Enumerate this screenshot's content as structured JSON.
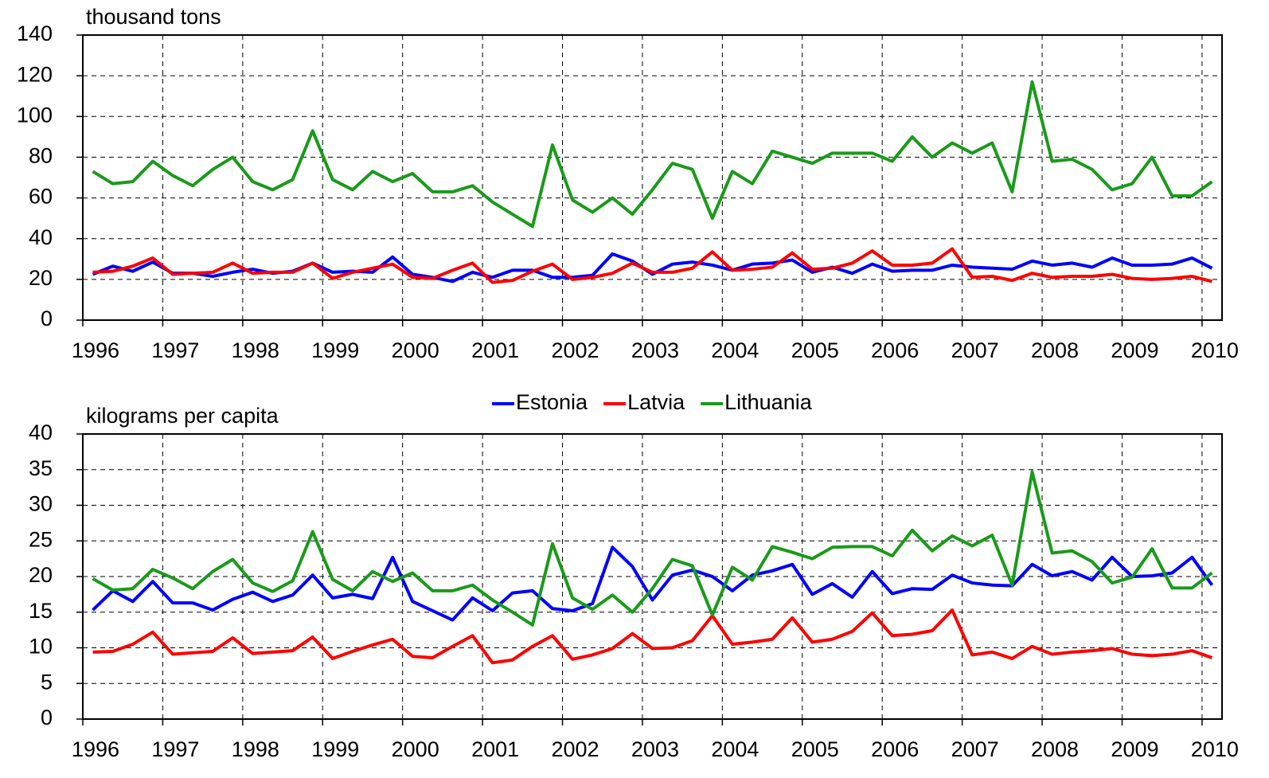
{
  "chart_data": [
    {
      "type": "line",
      "title": "thousand tons",
      "x": [
        1996.125,
        1996.375,
        1996.625,
        1996.875,
        1997.125,
        1997.375,
        1997.625,
        1997.875,
        1998.125,
        1998.375,
        1998.625,
        1998.875,
        1999.125,
        1999.375,
        1999.625,
        1999.875,
        2000.125,
        2000.375,
        2000.625,
        2000.875,
        2001.125,
        2001.375,
        2001.625,
        2001.875,
        2002.125,
        2002.375,
        2002.625,
        2002.875,
        2003.125,
        2003.375,
        2003.625,
        2003.875,
        2004.125,
        2004.375,
        2004.625,
        2004.875,
        2005.125,
        2005.375,
        2005.625,
        2005.875,
        2006.125,
        2006.375,
        2006.625,
        2006.875,
        2007.125,
        2007.375,
        2007.625,
        2007.875,
        2008.125,
        2008.375,
        2008.625,
        2008.875,
        2009.125,
        2009.375,
        2009.625,
        2009.875,
        2010.125
      ],
      "series": [
        {
          "color": "#0000ff",
          "values": [
            22.5,
            26.5,
            24,
            28.5,
            23,
            23,
            21.5,
            23.5,
            25,
            23,
            24,
            28,
            23.5,
            24,
            23.5,
            31,
            22.5,
            21,
            19,
            23.5,
            21,
            24.5,
            24.5,
            21,
            21,
            22,
            32.5,
            29,
            22.5,
            27.5,
            28.5,
            27,
            24.5,
            27.5,
            28,
            29.5,
            23.5,
            26,
            23,
            27.5,
            24,
            24.5,
            24.5,
            27,
            26,
            25.5,
            25,
            29,
            27,
            28,
            26,
            30.5,
            27,
            27,
            27.5,
            30.5,
            25.5
          ]
        },
        {
          "color": "#ff0000",
          "values": [
            23.5,
            24,
            26.5,
            30.5,
            22.5,
            23,
            23.5,
            28,
            23,
            23.5,
            23.5,
            28,
            20.5,
            23.5,
            25.5,
            27.5,
            21,
            20.5,
            24.5,
            28,
            18.5,
            19.5,
            24,
            27.5,
            20,
            21,
            23,
            28,
            23.5,
            23.5,
            25.5,
            33.5,
            24.5,
            25,
            26,
            33,
            25,
            25.5,
            28,
            34,
            27,
            27,
            28,
            35,
            21,
            21.5,
            19.5,
            23,
            21,
            21.5,
            21.5,
            22.5,
            20.5,
            20,
            20.5,
            21.5,
            19
          ]
        },
        {
          "color": "#1a9a1a",
          "values": [
            73,
            67,
            68,
            78,
            71,
            66,
            74,
            80,
            68,
            64,
            69,
            93,
            69,
            64,
            73,
            68,
            72,
            63,
            63,
            66,
            58,
            52,
            46,
            86,
            59,
            53,
            60,
            52,
            64,
            77,
            74,
            50,
            73,
            67,
            83,
            80,
            77,
            82,
            82,
            82,
            78,
            90,
            80,
            87,
            82,
            87,
            63,
            117,
            78,
            79,
            74,
            64,
            67,
            80,
            61,
            61,
            68
          ]
        }
      ],
      "xlim": [
        1996,
        2010.25
      ],
      "xticks": [
        1996,
        1997,
        1998,
        1999,
        2000,
        2001,
        2002,
        2003,
        2004,
        2005,
        2006,
        2007,
        2008,
        2009,
        2010
      ],
      "ylim": [
        0,
        140
      ],
      "yticks": [
        0,
        20,
        40,
        60,
        80,
        100,
        120,
        140
      ],
      "grid": true
    },
    {
      "type": "line",
      "title": "kilograms per capita",
      "x": [
        1996.125,
        1996.375,
        1996.625,
        1996.875,
        1997.125,
        1997.375,
        1997.625,
        1997.875,
        1998.125,
        1998.375,
        1998.625,
        1998.875,
        1999.125,
        1999.375,
        1999.625,
        1999.875,
        2000.125,
        2000.375,
        2000.625,
        2000.875,
        2001.125,
        2001.375,
        2001.625,
        2001.875,
        2002.125,
        2002.375,
        2002.625,
        2002.875,
        2003.125,
        2003.375,
        2003.625,
        2003.875,
        2004.125,
        2004.375,
        2004.625,
        2004.875,
        2005.125,
        2005.375,
        2005.625,
        2005.875,
        2006.125,
        2006.375,
        2006.625,
        2006.875,
        2007.125,
        2007.375,
        2007.625,
        2007.875,
        2008.125,
        2008.375,
        2008.625,
        2008.875,
        2009.125,
        2009.375,
        2009.625,
        2009.875,
        2010.125
      ],
      "series": [
        {
          "name": "Estonia",
          "color": "#0000ff",
          "values": [
            15.3,
            18,
            16.5,
            19.3,
            16.3,
            16.3,
            15.3,
            16.8,
            17.8,
            16.5,
            17.4,
            20.2,
            17,
            17.5,
            16.9,
            22.7,
            16.5,
            15.2,
            13.9,
            17,
            15.2,
            17.7,
            18,
            15.5,
            15.2,
            16.2,
            24.1,
            21.4,
            16.7,
            20.2,
            20.9,
            20,
            18,
            20.2,
            20.8,
            21.7,
            17.5,
            19,
            17.1,
            20.7,
            17.6,
            18.3,
            18.2,
            20.2,
            19.1,
            18.8,
            18.7,
            21.7,
            20.1,
            20.7,
            19.5,
            22.7,
            20,
            20.1,
            20.5,
            22.7,
            18.8
          ]
        },
        {
          "name": "Latvia",
          "color": "#ff0000",
          "values": [
            9.4,
            9.5,
            10.5,
            12.2,
            9.1,
            9.3,
            9.5,
            11.4,
            9.2,
            9.4,
            9.6,
            11.5,
            8.5,
            9.5,
            10.4,
            11.2,
            8.8,
            8.6,
            10.2,
            11.7,
            7.9,
            8.3,
            10.2,
            11.7,
            8.4,
            9,
            9.9,
            12,
            9.9,
            10,
            11,
            14.5,
            10.5,
            10.8,
            11.2,
            14.2,
            10.8,
            11.2,
            12.3,
            14.9,
            11.7,
            11.9,
            12.4,
            15.3,
            9,
            9.4,
            8.5,
            10.2,
            9.1,
            9.4,
            9.6,
            9.9,
            9.1,
            8.9,
            9.1,
            9.6,
            8.6
          ]
        },
        {
          "name": "Lithuania",
          "color": "#1a9a1a",
          "values": [
            19.7,
            18.1,
            18.3,
            21,
            19.8,
            18.3,
            20.7,
            22.4,
            19.1,
            17.9,
            19.4,
            26.3,
            19.6,
            18,
            20.7,
            19.3,
            20.5,
            18,
            18,
            18.8,
            16.7,
            15,
            13.2,
            24.6,
            17,
            15.4,
            17.4,
            15,
            18.3,
            22.4,
            21.5,
            14.6,
            21.3,
            19.5,
            24.2,
            23.4,
            22.5,
            24.1,
            24.2,
            24.2,
            22.9,
            26.5,
            23.6,
            25.7,
            24.3,
            25.8,
            18.8,
            34.7,
            23.3,
            23.6,
            22.1,
            19.1,
            19.9,
            23.9,
            18.4,
            18.4,
            20.5
          ]
        }
      ],
      "xlim": [
        1996,
        2010.25
      ],
      "xticks": [
        1996,
        1997,
        1998,
        1999,
        2000,
        2001,
        2002,
        2003,
        2004,
        2005,
        2006,
        2007,
        2008,
        2009,
        2010
      ],
      "ylim": [
        0,
        40
      ],
      "yticks": [
        0,
        5,
        10,
        15,
        20,
        25,
        30,
        35,
        40
      ],
      "grid": true,
      "legend": "top"
    }
  ]
}
